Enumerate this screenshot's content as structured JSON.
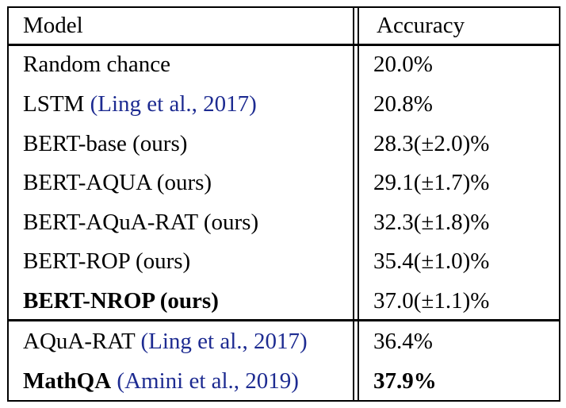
{
  "table": {
    "headers": {
      "model": "Model",
      "accuracy": "Accuracy"
    },
    "group1": [
      {
        "model": "Random chance",
        "accuracy": "20.0%"
      },
      {
        "model": "LSTM ",
        "cite": "(Ling et al., 2017)",
        "accuracy": "20.8%"
      },
      {
        "model": "BERT-base (ours)",
        "accuracy": "28.3(±2.0)%"
      },
      {
        "model": "BERT-AQUA (ours)",
        "accuracy": "29.1(±1.7)%"
      },
      {
        "model": "BERT-AQuA-RAT (ours)",
        "accuracy": "32.3(±1.8)%"
      },
      {
        "model": "BERT-ROP (ours)",
        "accuracy": "35.4(±1.0)%"
      },
      {
        "model": "BERT-NROP (ours)",
        "accuracy": "37.0(±1.1)%"
      }
    ],
    "group2": [
      {
        "model": "AQuA-RAT ",
        "cite": "(Ling et al., 2017)",
        "accuracy": "36.4%"
      },
      {
        "model": "MathQA",
        "cite": " (Amini et al., 2019)",
        "accuracy": "37.9%"
      }
    ]
  }
}
